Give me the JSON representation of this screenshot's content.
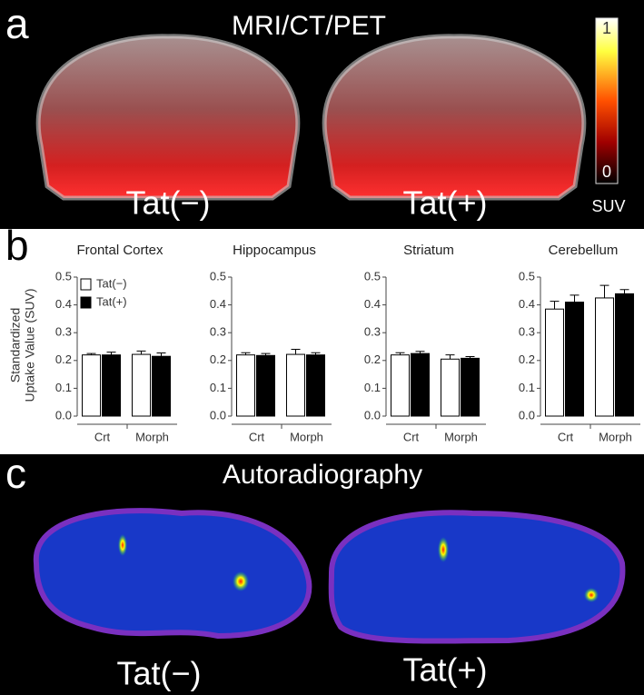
{
  "panel_a": {
    "label": "a",
    "title": "MRI/CT/PET",
    "images": [
      "Tat(−)",
      "Tat(+)"
    ],
    "colorbar": {
      "max": "1",
      "min": "0",
      "label": "SUV"
    }
  },
  "panel_b": {
    "label": "b",
    "y_label": [
      "Standardized",
      "Uptake Value (SUV)"
    ]
  },
  "panel_c": {
    "label": "c",
    "title": "Autoradiography",
    "images": [
      "Tat(−)",
      "Tat(+)"
    ]
  },
  "chart_data": [
    {
      "type": "bar",
      "title": "Frontal Cortex",
      "categories": [
        "Crt",
        "Morph"
      ],
      "legend": "upper left",
      "series": [
        {
          "name": "Tat(−)",
          "color": "#ffffff",
          "values": [
            0.22,
            0.222
          ],
          "errors": [
            0.005,
            0.012
          ]
        },
        {
          "name": "Tat(+)",
          "color": "#000000",
          "values": [
            0.22,
            0.215
          ],
          "errors": [
            0.01,
            0.012
          ]
        }
      ],
      "ylim": [
        0,
        0.5
      ],
      "yticks": [
        {
          "value": 0,
          "label": "0.0"
        },
        0.1,
        0.2,
        0.3,
        0.4,
        0.5
      ]
    },
    {
      "type": "bar",
      "title": "Hippocampus",
      "categories": [
        "Crt",
        "Morph"
      ],
      "series": [
        {
          "color": "#ffffff",
          "values": [
            0.22,
            0.222
          ],
          "errors": [
            0.008,
            0.018
          ]
        },
        {
          "color": "#000000",
          "values": [
            0.218,
            0.22
          ],
          "errors": [
            0.007,
            0.008
          ]
        }
      ],
      "ylim": [
        0,
        0.5
      ],
      "yticks": [
        {
          "value": 0,
          "label": "0.0"
        },
        0.1,
        0.2,
        0.3,
        0.4,
        0.5
      ]
    },
    {
      "type": "bar",
      "title": "Striatum",
      "categories": [
        "Crt",
        "Morph"
      ],
      "series": [
        {
          "color": "#ffffff",
          "values": [
            0.22,
            0.205
          ],
          "errors": [
            0.008,
            0.015
          ]
        },
        {
          "color": "#000000",
          "values": [
            0.225,
            0.208
          ],
          "errors": [
            0.008,
            0.006
          ]
        }
      ],
      "ylim": [
        0,
        0.5
      ],
      "yticks": [
        {
          "value": 0,
          "label": "0.0"
        },
        0.1,
        0.2,
        0.3,
        0.4,
        0.5
      ]
    },
    {
      "type": "bar",
      "title": "Cerebellum",
      "categories": [
        "Crt",
        "Morph"
      ],
      "series": [
        {
          "color": "#ffffff",
          "values": [
            0.385,
            0.425
          ],
          "errors": [
            0.028,
            0.045
          ]
        },
        {
          "color": "#000000",
          "values": [
            0.41,
            0.44
          ],
          "errors": [
            0.025,
            0.015
          ]
        }
      ],
      "ylim": [
        0,
        0.5
      ],
      "yticks": [
        {
          "value": 0,
          "label": "0.0"
        },
        0.1,
        0.2,
        0.3,
        0.4,
        0.5
      ]
    }
  ]
}
